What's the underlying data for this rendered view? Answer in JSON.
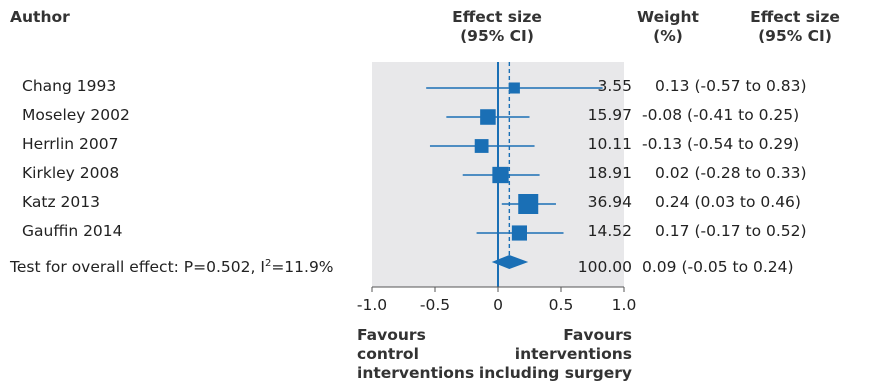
{
  "headers": {
    "author": "Author",
    "effect_line1": "Effect size",
    "effect_line2": "(95% CI)",
    "weight_line1": "Weight",
    "weight_line2": "(%)",
    "ci_line1": "Effect size",
    "ci_line2": "(95% CI)"
  },
  "footer": {
    "favours_left": [
      "Favours",
      "control",
      "interventions"
    ],
    "favours_right": [
      "Favours",
      "interventions",
      "including surgery"
    ]
  },
  "colors": {
    "marker": "#1a6fb5",
    "panel": "#e8e8ea",
    "text": "#222222"
  },
  "chart_data": {
    "type": "forest",
    "xlim": [
      -1.0,
      1.0
    ],
    "xticks": [
      "-1.0",
      "-0.5",
      "0",
      "0.5",
      "1.0"
    ],
    "studies": [
      {
        "author": "Chang 1993",
        "weight": "3.55",
        "effect": 0.13,
        "lower": -0.57,
        "upper": 0.83,
        "ci_text": "0.13 (-0.57 to 0.83)"
      },
      {
        "author": "Moseley 2002",
        "weight": "15.97",
        "effect": -0.08,
        "lower": -0.41,
        "upper": 0.25,
        "ci_text": "-0.08 (-0.41 to 0.25)"
      },
      {
        "author": "Herrlin 2007",
        "weight": "10.11",
        "effect": -0.13,
        "lower": -0.54,
        "upper": 0.29,
        "ci_text": "-0.13 (-0.54 to 0.29)"
      },
      {
        "author": "Kirkley 2008",
        "weight": "18.91",
        "effect": 0.02,
        "lower": -0.28,
        "upper": 0.33,
        "ci_text": "0.02 (-0.28 to 0.33)"
      },
      {
        "author": "Katz 2013",
        "weight": "36.94",
        "effect": 0.24,
        "lower": 0.03,
        "upper": 0.46,
        "ci_text": "0.24 (0.03 to 0.46)"
      },
      {
        "author": "Gauffin 2014",
        "weight": "14.52",
        "effect": 0.17,
        "lower": -0.17,
        "upper": 0.52,
        "ci_text": "0.17 (-0.17 to 0.52)"
      }
    ],
    "overall": {
      "label_prefix": "Test for overall effect: P=0.502, I",
      "label_sup": "2",
      "label_suffix": "=11.9%",
      "weight": "100.00",
      "effect": 0.09,
      "lower": -0.05,
      "upper": 0.24,
      "ci_text": "0.09 (-0.05 to 0.24)"
    }
  }
}
